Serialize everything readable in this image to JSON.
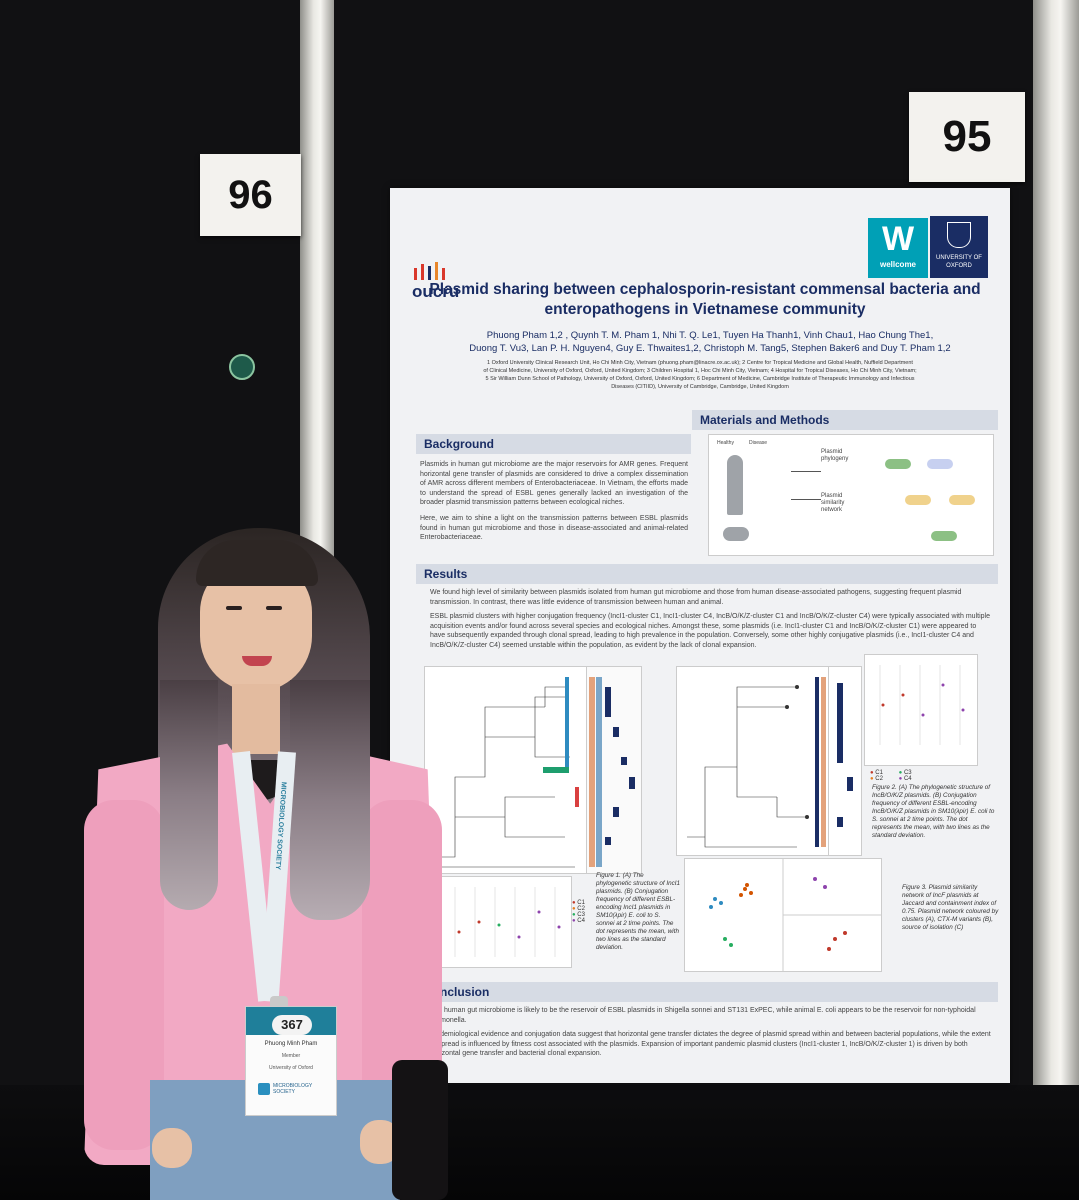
{
  "board": {
    "left_number": "96",
    "right_number": "95"
  },
  "poster": {
    "org_logo": "oucru",
    "funder_logo": "wellcome",
    "university_logo": "UNIVERSITY OF OXFORD",
    "title_line1": "Plasmid sharing between cephalosporin-resistant commensal bacteria and",
    "title_line2": "enteropathogens in Vietnamese community",
    "authors_line1": "Phuong Pham 1,2 , Quynh T. M. Pham 1, Nhi T. Q. Le1, Tuyen Ha Thanh1, Vinh Chau1, Hao Chung The1,",
    "authors_line2": "Duong T. Vu3, Lan P. H. Nguyen4, Guy E. Thwaites1,2, Christoph M. Tang5, Stephen Baker6 and Duy T. Pham 1,2",
    "affiliations_1": "1 Oxford University Clinical Research Unit, Ho Chi Minh City, Vietnam (phuong.pham@linacre.ox.ac.uk); 2 Centre for Tropical Medicine and Global Health, Nuffield Department",
    "affiliations_2": "of Clinical Medicine, University of Oxford, Oxford, United Kingdom; 3 Children Hospital 1, Hoc Chi Minh City, Vietnam; 4 Hospital for Tropical Diseases, Ho Chi Minh City, Vietnam;",
    "affiliations_3": "5 Sir William Dunn School of Pathology, University of Oxford, Oxford, United Kingdom; 6 Department of Medicine, Cambridge Institute of Therapeutic Immunology and Infectious",
    "affiliations_4": "Diseases (CITIID), University of Cambridge, Cambridge, United Kingdom",
    "background_heading": "Background",
    "background_p1": "Plasmids in human gut microbiome are the major reservoirs for AMR genes. Frequent horizontal gene transfer of plasmids are considered to drive a complex dissemination of AMR across different members of Enterobacteriaceae. In Vietnam, the efforts made to understand the spread of ESBL genes generally lacked an investigation of the broader plasmid transmission patterns between ecological niches.",
    "background_p2": "Here, we aim to shine a light on the transmission patterns between ESBL plasmids found in human gut microbiome and those in disease-associated and animal-related Enterobacteriaceae.",
    "methods_heading": "Materials and Methods",
    "methods_labels": {
      "healthy": "Healthy",
      "disease": "Disease",
      "phylogeny": "Plasmid phylogeny",
      "network": "Plasmid similarity network"
    },
    "results_heading": "Results",
    "results_p1": "We found high level of similarity between plasmids isolated from human gut microbiome and those from human disease-associated pathogens, suggesting frequent plasmid transmission. In contrast, there was little evidence of transmission between human and animal.",
    "results_p2": "ESBL plasmid clusters with higher conjugation frequency (IncI1-cluster C1, IncI1-cluster C4, IncB/O/K/Z-cluster C1 and IncB/O/K/Z-cluster C4) were typically associated with multiple acquisition events and/or found across several species and ecological niches. Amongst these, some plasmids (i.e. IncI1-cluster C1 and IncB/O/K/Z-cluster C1) were appeared to have subsequently expanded through clonal spread, leading to high prevalence in the population. Conversely, some other highly conjugative plasmids (i.e., IncI1-cluster C4 and IncB/O/K/Z-cluster C4) seemed unstable within the population, as evident by the lack of clonal expansion.",
    "figure1_caption": "Figure 1. (A) The phylogenetic structure of IncI1 plasmids. (B) Conjugation frequency of different ESBL-encoding IncI1 plasmids in SM10(λpir) E. coli to S. sonnei at 2 time points. The dot represents the mean, with two lines as the standard deviation.",
    "figure2_caption": "Figure 2. (A) The phylogenetic structure of IncB/O/K/Z plasmids. (B) Conjugation frequency of different ESBL-encoding IncB/O/K/Z plasmids in SM10(λpir) E. coli to S. sonnei at 2 time points. The dot represents the mean, with two lines as the standard deviation.",
    "figure3_caption": "Figure 3. Plasmid similarity network of IncF plasmids at Jaccard and containment index of 0.75. Plasmid network coloured by clusters (A), CTX-M variants (B), source of isolation (C)",
    "cluster_legend": [
      "C1",
      "C2",
      "C3",
      "C4"
    ],
    "conclusion_heading": "Conclusion",
    "conclusion_p1": "The human gut microbiome is likely to be the reservoir of ESBL plasmids in Shigella sonnei and ST131 ExPEC, while animal E. coli appears to be the reservoir for non-typhoidal Salmonella.",
    "conclusion_p2": "Epidemiological evidence and conjugation data suggest that horizontal gene transfer dictates the degree of plasmid spread within and between bacterial populations, while the extent of spread is influenced by fitness cost associated with the plasmids. Expansion of important pandemic plasmid clusters (IncI1-cluster 1, IncB/O/K/Z-cluster 1) is driven by both horizontal gene transfer and bacterial clonal expansion."
  },
  "badge": {
    "number": "367",
    "name": "Phuong Minh Pham",
    "role": "Member",
    "org": "University of Oxford",
    "society": "MICROBIOLOGY SOCIETY",
    "lanyard_text": "MICROBIOLOGY SOCIETY"
  },
  "colors": {
    "title_navy": "#1a2d64",
    "sweater_pink": "#f2a9c4",
    "wellcome_teal": "#00a0b6",
    "oxford_navy": "#1a2d64",
    "oucru_red": "#d9382b"
  }
}
